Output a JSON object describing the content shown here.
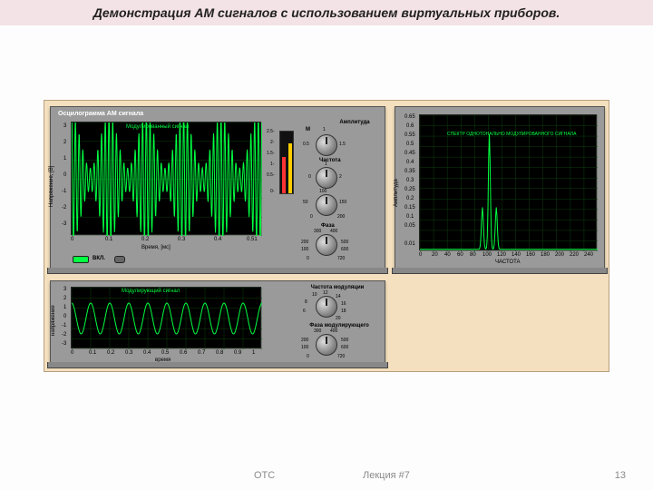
{
  "title": "Демонстрация АМ сигналов с использованием виртуальных приборов.",
  "footer": {
    "left": "ОТС",
    "center": "Лекция #7",
    "page": "13"
  },
  "colors": {
    "title_bg": "#f3e2e6",
    "workspace_bg": "#f4e0be",
    "instrument_bg": "#9a9a9a",
    "screen_bg": "#000000",
    "trace": "#00ff41",
    "grid": "#0d3d0d",
    "axis_text": "#000000"
  },
  "osc_main": {
    "panel_title": "Осцилограмма АМ сигнала",
    "trace_title": "Модулированный сигнал",
    "xlabel": "Время, [мс]",
    "ylabel": "Напряжение, [В]",
    "xlim": [
      0,
      0.51
    ],
    "xtick": [
      0,
      0.1,
      0.2,
      0.3,
      0.4,
      0.51
    ],
    "ylim": [
      -3,
      3
    ],
    "ytick": [
      -3,
      -2,
      -1,
      0,
      1,
      2,
      3
    ],
    "carrier_f": 100,
    "mod_f": 10,
    "m": 0.7,
    "amp": 2
  },
  "osc_mod": {
    "trace_title": "Модулирующий сигнал",
    "xlabel": "время",
    "ylabel": "напряжение",
    "xlim": [
      0,
      1
    ],
    "xtick": [
      0,
      0.1,
      0.2,
      0.3,
      0.4,
      0.5,
      0.6,
      0.7,
      0.8,
      0.9,
      1
    ],
    "ylim": [
      -3,
      3
    ],
    "ytick": [
      -3,
      -2,
      -1,
      0,
      1,
      2,
      3
    ],
    "f": 10,
    "amp": 1.5
  },
  "spectrum": {
    "trace_title": "СПЕКТР ОДНОТОНАЛЬНО МОДУЛИРОВАННОГО СИГНАЛА",
    "xlabel": "ЧАСТОТА",
    "ylabel": "Амплитуда",
    "xlim": [
      0,
      256
    ],
    "xtick": [
      0,
      20,
      40,
      60,
      80,
      100,
      120,
      140,
      160,
      180,
      200,
      220,
      240,
      256
    ],
    "ylim": [
      0,
      0.65
    ],
    "ytick": [
      0.01,
      0.05,
      0.1,
      0.15,
      0.2,
      0.25,
      0.3,
      0.35,
      0.4,
      0.45,
      0.5,
      0.55,
      0.6,
      0.65
    ],
    "peaks": [
      [
        90,
        0.2
      ],
      [
        100,
        0.55
      ],
      [
        110,
        0.2
      ]
    ]
  },
  "controls": {
    "amp_label": "Амплитуда",
    "m_label": "М",
    "m_ticks": [
      "0.5",
      "1",
      "1.5"
    ],
    "freq_label": "Частота",
    "freq_ticks": [
      "0",
      "1",
      "2"
    ],
    "freq2_ticks": [
      "50",
      "100",
      "150",
      "0",
      "200"
    ],
    "phase_label": "Фаза",
    "phase_ticks": [
      "100",
      "200",
      "300",
      "400",
      "500",
      "600",
      "0",
      "720"
    ],
    "modfreq_label": "Частота модуляции",
    "modfreq_ticks": [
      "6",
      "8",
      "10",
      "12",
      "14",
      "16",
      "18",
      "20"
    ],
    "modphase_label": "Фаза модулирующего",
    "modphase_ticks": [
      "100",
      "200",
      "300",
      "400",
      "500",
      "600",
      "0",
      "720"
    ],
    "vbar_ticks": [
      "2.5-",
      "2-",
      "1.5-",
      "1-",
      "0.5-",
      "0-"
    ],
    "power_label": "ВКЛ."
  }
}
